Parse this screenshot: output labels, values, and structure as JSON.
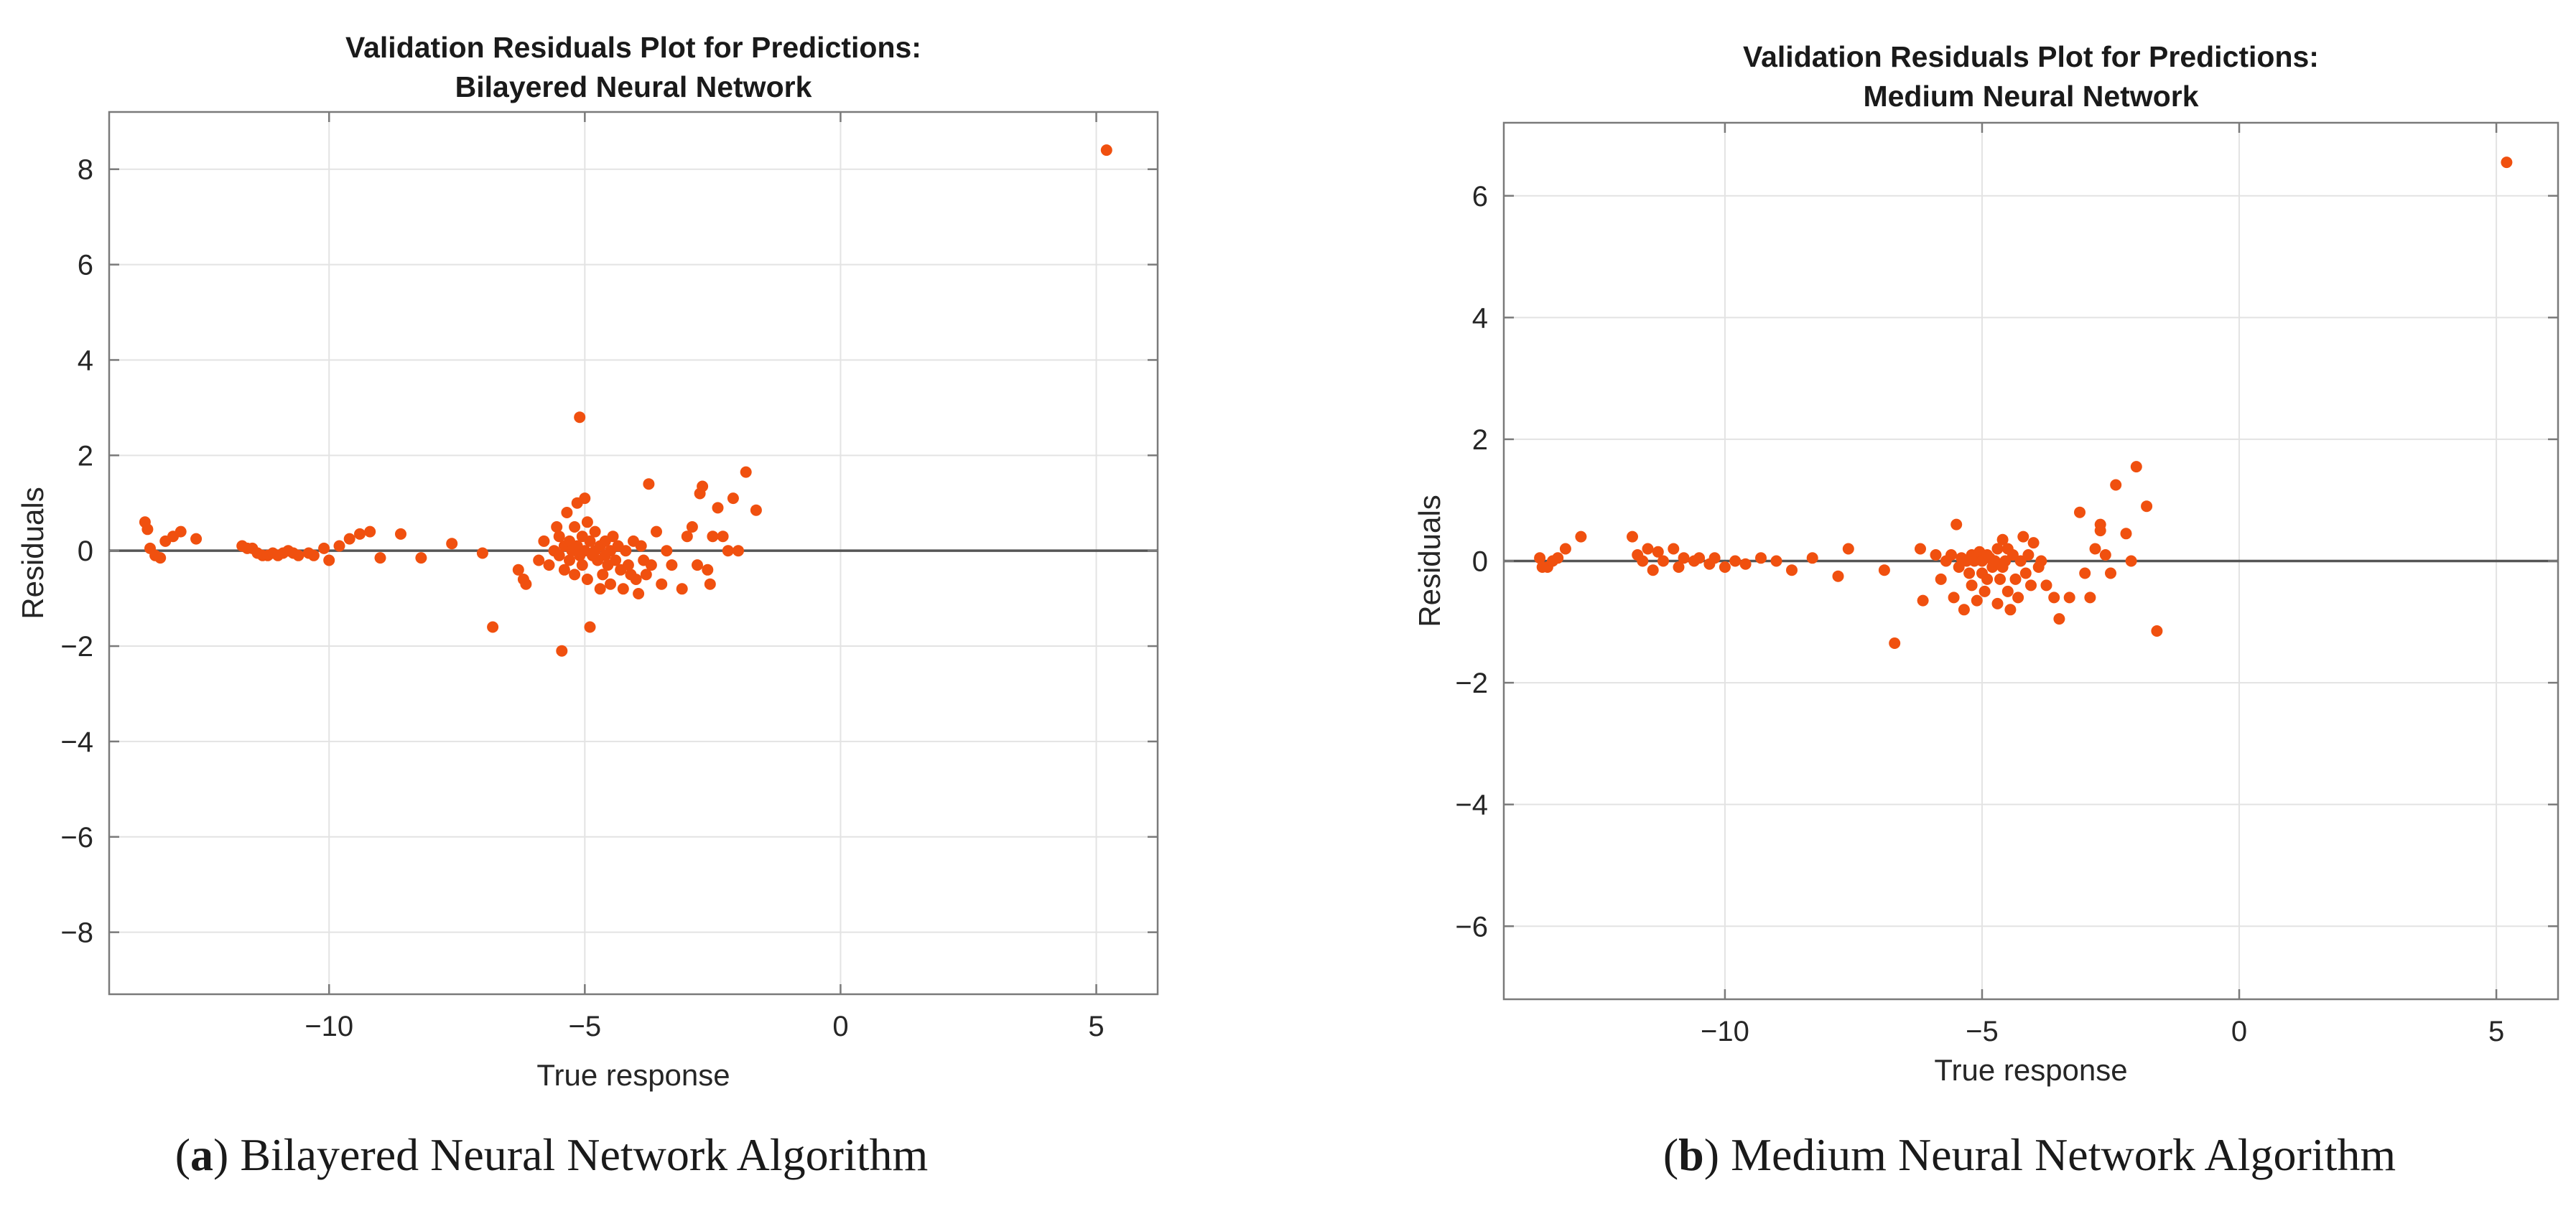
{
  "colors": {
    "point": "#f0500f",
    "background": "#ffffff"
  },
  "captions": [
    {
      "letter": "a",
      "text": "Bilayered Neural Network Algorithm"
    },
    {
      "letter": "b",
      "text": "Medium Neural Network Algorithm"
    }
  ],
  "chart_data": [
    {
      "type": "scatter",
      "title": [
        "Validation Residuals Plot for Predictions:",
        "Bilayered Neural Network"
      ],
      "xlabel": "True response",
      "ylabel": "Residuals",
      "xlim": [
        -14.3,
        6.2
      ],
      "ylim": [
        -9.3,
        9.2
      ],
      "xticks": [
        -10,
        -5,
        0,
        5
      ],
      "xtick_labels": [
        "−10",
        "−5",
        "0",
        "5"
      ],
      "yticks": [
        -8,
        -6,
        -4,
        -2,
        0,
        2,
        4,
        6,
        8
      ],
      "ytick_labels": [
        "−8",
        "−6",
        "−4",
        "−2",
        "0",
        "2",
        "4",
        "6",
        "8"
      ],
      "grid": true,
      "reference_line_y": 0,
      "points": [
        [
          -13.6,
          0.6
        ],
        [
          -13.55,
          0.45
        ],
        [
          -13.5,
          0.05
        ],
        [
          -13.4,
          -0.1
        ],
        [
          -13.3,
          -0.15
        ],
        [
          -13.2,
          0.2
        ],
        [
          -13.05,
          0.3
        ],
        [
          -12.9,
          0.4
        ],
        [
          -12.6,
          0.25
        ],
        [
          -11.7,
          0.1
        ],
        [
          -11.6,
          0.05
        ],
        [
          -11.5,
          0.05
        ],
        [
          -11.4,
          -0.05
        ],
        [
          -11.3,
          -0.1
        ],
        [
          -11.2,
          -0.1
        ],
        [
          -11.1,
          -0.05
        ],
        [
          -11,
          -0.1
        ],
        [
          -10.9,
          -0.05
        ],
        [
          -10.8,
          0.0
        ],
        [
          -10.7,
          -0.05
        ],
        [
          -10.6,
          -0.1
        ],
        [
          -10.4,
          -0.05
        ],
        [
          -10.3,
          -0.1
        ],
        [
          -10.1,
          0.05
        ],
        [
          -10.0,
          -0.2
        ],
        [
          -9.8,
          0.1
        ],
        [
          -9.6,
          0.25
        ],
        [
          -9.4,
          0.35
        ],
        [
          -9.2,
          0.4
        ],
        [
          -9.0,
          -0.15
        ],
        [
          -8.6,
          0.35
        ],
        [
          -8.2,
          -0.15
        ],
        [
          -7.6,
          0.15
        ],
        [
          -7.0,
          -0.05
        ],
        [
          -6.8,
          -1.6
        ],
        [
          -6.3,
          -0.4
        ],
        [
          -6.2,
          -0.6
        ],
        [
          -6.15,
          -0.7
        ],
        [
          -5.9,
          -0.2
        ],
        [
          -5.8,
          0.2
        ],
        [
          -5.7,
          -0.3
        ],
        [
          -5.6,
          0.0
        ],
        [
          -5.55,
          0.5
        ],
        [
          -5.5,
          0.3
        ],
        [
          -5.5,
          -0.1
        ],
        [
          -5.45,
          -2.1
        ],
        [
          -5.4,
          0.1
        ],
        [
          -5.4,
          -0.4
        ],
        [
          -5.35,
          0.8
        ],
        [
          -5.3,
          0.2
        ],
        [
          -5.3,
          -0.2
        ],
        [
          -5.25,
          0.0
        ],
        [
          -5.2,
          0.5
        ],
        [
          -5.2,
          -0.5
        ],
        [
          -5.15,
          1.0
        ],
        [
          -5.15,
          0.1
        ],
        [
          -5.1,
          2.8
        ],
        [
          -5.1,
          -0.1
        ],
        [
          -5.05,
          0.3
        ],
        [
          -5.05,
          -0.3
        ],
        [
          -5.0,
          0.0
        ],
        [
          -5.0,
          1.1
        ],
        [
          -4.95,
          0.6
        ],
        [
          -4.95,
          -0.6
        ],
        [
          -4.9,
          0.2
        ],
        [
          -4.9,
          -1.6
        ],
        [
          -4.85,
          -0.1
        ],
        [
          -4.8,
          0.4
        ],
        [
          -4.8,
          0.0
        ],
        [
          -4.75,
          -0.2
        ],
        [
          -4.7,
          0.1
        ],
        [
          -4.7,
          -0.8
        ],
        [
          -4.65,
          -0.5
        ],
        [
          -4.6,
          0.2
        ],
        [
          -4.6,
          -0.1
        ],
        [
          -4.55,
          -0.3
        ],
        [
          -4.5,
          0.0
        ],
        [
          -4.5,
          -0.7
        ],
        [
          -4.45,
          0.3
        ],
        [
          -4.4,
          -0.2
        ],
        [
          -4.35,
          0.1
        ],
        [
          -4.3,
          -0.4
        ],
        [
          -4.25,
          -0.8
        ],
        [
          -4.2,
          0.0
        ],
        [
          -4.15,
          -0.3
        ],
        [
          -4.1,
          -0.5
        ],
        [
          -4.05,
          0.2
        ],
        [
          -4.0,
          -0.6
        ],
        [
          -3.95,
          -0.9
        ],
        [
          -3.9,
          0.1
        ],
        [
          -3.85,
          -0.2
        ],
        [
          -3.8,
          -0.5
        ],
        [
          -3.75,
          1.4
        ],
        [
          -3.7,
          -0.3
        ],
        [
          -3.6,
          0.4
        ],
        [
          -3.5,
          -0.7
        ],
        [
          -3.4,
          0.0
        ],
        [
          -3.3,
          -0.3
        ],
        [
          -3.1,
          -0.8
        ],
        [
          -3.0,
          0.3
        ],
        [
          -2.9,
          0.5
        ],
        [
          -2.8,
          -0.3
        ],
        [
          -2.75,
          1.2
        ],
        [
          -2.7,
          1.35
        ],
        [
          -2.6,
          -0.4
        ],
        [
          -2.55,
          -0.7
        ],
        [
          -2.5,
          0.3
        ],
        [
          -2.4,
          0.9
        ],
        [
          -2.3,
          0.3
        ],
        [
          -2.2,
          0.0
        ],
        [
          -2.1,
          1.1
        ],
        [
          -2.0,
          0.0
        ],
        [
          -1.85,
          1.65
        ],
        [
          -1.65,
          0.85
        ],
        [
          5.2,
          8.4
        ]
      ]
    },
    {
      "type": "scatter",
      "title": [
        "Validation Residuals Plot for Predictions:",
        "Medium Neural Network"
      ],
      "xlabel": "True response",
      "ylabel": "Residuals",
      "xlim": [
        -14.3,
        6.2
      ],
      "ylim": [
        -7.2,
        7.2
      ],
      "xticks": [
        -10,
        -5,
        0,
        5
      ],
      "xtick_labels": [
        "−10",
        "−5",
        "0",
        "5"
      ],
      "yticks": [
        -6,
        -4,
        -2,
        0,
        2,
        4,
        6
      ],
      "ytick_labels": [
        "−6",
        "−4",
        "−2",
        "0",
        "2",
        "4",
        "6"
      ],
      "grid": true,
      "reference_line_y": 0,
      "points": [
        [
          -13.6,
          0.05
        ],
        [
          -13.55,
          -0.1
        ],
        [
          -13.45,
          -0.1
        ],
        [
          -13.35,
          0.0
        ],
        [
          -13.25,
          0.05
        ],
        [
          -13.1,
          0.2
        ],
        [
          -12.8,
          0.4
        ],
        [
          -11.8,
          0.4
        ],
        [
          -11.7,
          0.1
        ],
        [
          -11.6,
          0.0
        ],
        [
          -11.5,
          0.2
        ],
        [
          -11.4,
          -0.15
        ],
        [
          -11.3,
          0.15
        ],
        [
          -11.2,
          0.0
        ],
        [
          -11.0,
          0.2
        ],
        [
          -10.9,
          -0.1
        ],
        [
          -10.8,
          0.05
        ],
        [
          -10.6,
          0.0
        ],
        [
          -10.5,
          0.05
        ],
        [
          -10.3,
          -0.05
        ],
        [
          -10.2,
          0.05
        ],
        [
          -10.0,
          -0.1
        ],
        [
          -9.8,
          0.0
        ],
        [
          -9.6,
          -0.05
        ],
        [
          -9.3,
          0.05
        ],
        [
          -9.0,
          0.0
        ],
        [
          -8.7,
          -0.15
        ],
        [
          -8.3,
          0.05
        ],
        [
          -7.8,
          -0.25
        ],
        [
          -7.6,
          0.2
        ],
        [
          -6.9,
          -0.15
        ],
        [
          -6.7,
          -1.35
        ],
        [
          -6.2,
          0.2
        ],
        [
          -6.15,
          -0.65
        ],
        [
          -5.9,
          0.1
        ],
        [
          -5.8,
          -0.3
        ],
        [
          -5.7,
          0.0
        ],
        [
          -5.6,
          0.1
        ],
        [
          -5.55,
          -0.6
        ],
        [
          -5.5,
          0.6
        ],
        [
          -5.45,
          -0.1
        ],
        [
          -5.4,
          0.05
        ],
        [
          -5.35,
          -0.8
        ],
        [
          -5.3,
          0.0
        ],
        [
          -5.25,
          -0.2
        ],
        [
          -5.2,
          0.1
        ],
        [
          -5.2,
          -0.4
        ],
        [
          -5.15,
          0.0
        ],
        [
          -5.1,
          0.1
        ],
        [
          -5.1,
          -0.65
        ],
        [
          -5.05,
          0.15
        ],
        [
          -5.0,
          -0.2
        ],
        [
          -5.0,
          0.0
        ],
        [
          -4.95,
          -0.5
        ],
        [
          -4.9,
          0.1
        ],
        [
          -4.9,
          -0.3
        ],
        [
          -4.85,
          0.05
        ],
        [
          -4.8,
          -0.1
        ],
        [
          -4.75,
          0.0
        ],
        [
          -4.7,
          -0.7
        ],
        [
          -4.7,
          0.2
        ],
        [
          -4.65,
          -0.3
        ],
        [
          -4.6,
          0.35
        ],
        [
          -4.6,
          -0.1
        ],
        [
          -4.55,
          0.0
        ],
        [
          -4.5,
          -0.5
        ],
        [
          -4.5,
          0.2
        ],
        [
          -4.45,
          -0.8
        ],
        [
          -4.4,
          0.1
        ],
        [
          -4.35,
          -0.3
        ],
        [
          -4.3,
          -0.6
        ],
        [
          -4.25,
          0.0
        ],
        [
          -4.2,
          0.4
        ],
        [
          -4.15,
          -0.2
        ],
        [
          -4.1,
          0.1
        ],
        [
          -4.05,
          -0.4
        ],
        [
          -4.0,
          0.3
        ],
        [
          -3.9,
          -0.1
        ],
        [
          -3.85,
          0.0
        ],
        [
          -3.75,
          -0.4
        ],
        [
          -3.6,
          -0.6
        ],
        [
          -3.5,
          -0.95
        ],
        [
          -3.3,
          -0.6
        ],
        [
          -3.1,
          0.8
        ],
        [
          -3.0,
          -0.2
        ],
        [
          -2.9,
          -0.6
        ],
        [
          -2.8,
          0.2
        ],
        [
          -2.7,
          0.6
        ],
        [
          -2.7,
          0.5
        ],
        [
          -2.6,
          0.1
        ],
        [
          -2.5,
          -0.2
        ],
        [
          -2.4,
          1.25
        ],
        [
          -2.2,
          0.45
        ],
        [
          -2.1,
          0.0
        ],
        [
          -2.0,
          1.55
        ],
        [
          -1.8,
          0.9
        ],
        [
          -1.6,
          -1.15
        ],
        [
          5.2,
          6.55
        ]
      ]
    }
  ]
}
